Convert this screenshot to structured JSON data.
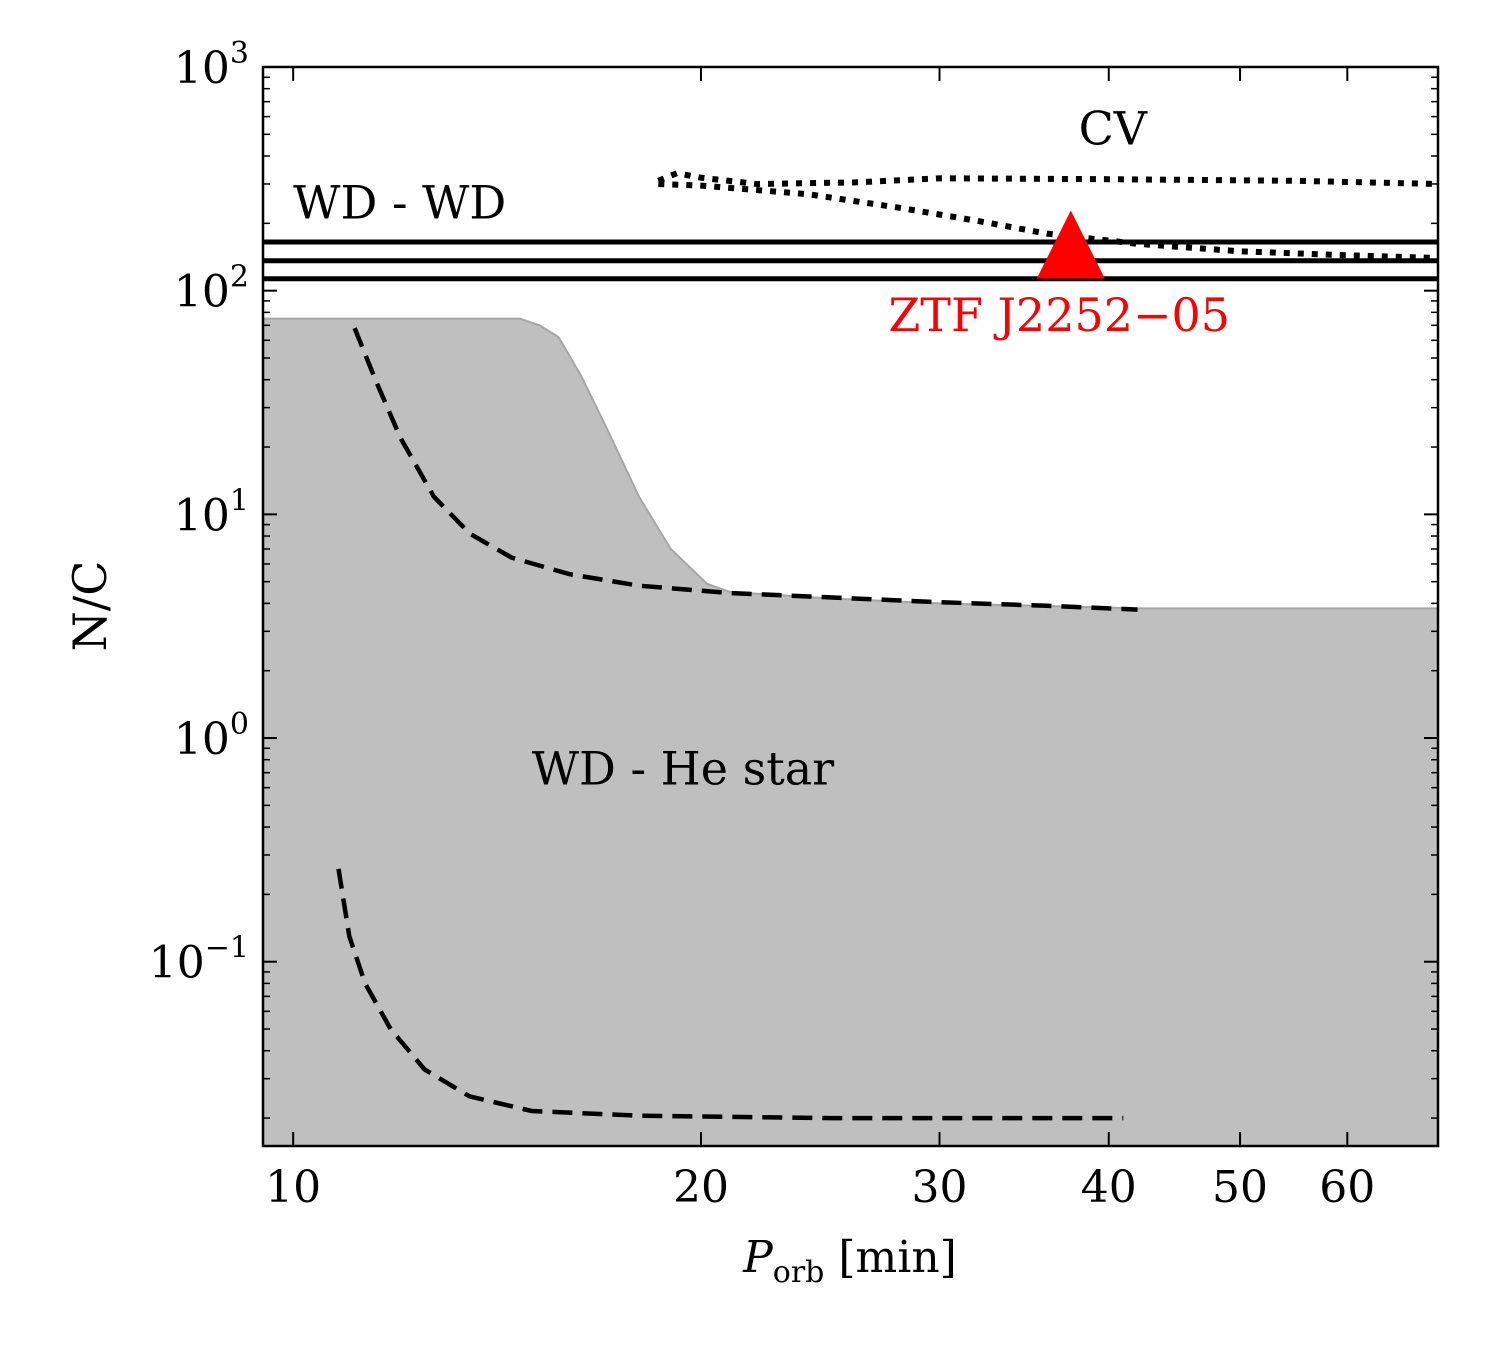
{
  "chart_data": {
    "type": "line",
    "title": "",
    "xlabel_main": "P",
    "xlabel_sub": "orb",
    "xlabel_unit": "[min]",
    "ylabel": "N/C",
    "xscale": "log",
    "yscale": "log",
    "xlim": [
      9.5,
      70
    ],
    "ylim": [
      0.015,
      1000
    ],
    "x_ticks": [
      {
        "value": 10,
        "label": "10"
      },
      {
        "value": 20,
        "label": "20"
      },
      {
        "value": 30,
        "label": "30"
      },
      {
        "value": 40,
        "label": "40"
      },
      {
        "value": 50,
        "label": "50"
      },
      {
        "value": 60,
        "label": "60"
      }
    ],
    "y_ticks": [
      {
        "value": 1000,
        "base": "10",
        "exp": "3"
      },
      {
        "value": 100,
        "base": "10",
        "exp": "2"
      },
      {
        "value": 10,
        "base": "10",
        "exp": "1"
      },
      {
        "value": 1,
        "base": "10",
        "exp": "0"
      },
      {
        "value": 0.1,
        "base": "10",
        "exp": "−1"
      }
    ],
    "regions": [
      {
        "name": "WD - He star",
        "color": "#bfbfbf",
        "edge_color": "#a6a6a6",
        "upper_boundary": [
          {
            "x": 9.5,
            "y": 75
          },
          {
            "x": 14.7,
            "y": 75
          },
          {
            "x": 15.2,
            "y": 70
          },
          {
            "x": 15.7,
            "y": 62
          },
          {
            "x": 16.3,
            "y": 42
          },
          {
            "x": 17.0,
            "y": 25
          },
          {
            "x": 18.0,
            "y": 12
          },
          {
            "x": 19.0,
            "y": 7
          },
          {
            "x": 20.2,
            "y": 4.9
          },
          {
            "x": 21.0,
            "y": 4.5
          },
          {
            "x": 25,
            "y": 4.2
          },
          {
            "x": 30,
            "y": 4.0
          },
          {
            "x": 42,
            "y": 3.8
          },
          {
            "x": 70,
            "y": 3.8
          }
        ]
      }
    ],
    "series": [
      {
        "name": "WD-WD track 1",
        "style": "solid",
        "points": [
          {
            "x": 9.5,
            "y": 165
          },
          {
            "x": 70,
            "y": 165
          }
        ]
      },
      {
        "name": "WD-WD track 2",
        "style": "solid",
        "points": [
          {
            "x": 9.5,
            "y": 136
          },
          {
            "x": 70,
            "y": 136
          }
        ]
      },
      {
        "name": "WD-WD track 3",
        "style": "solid",
        "points": [
          {
            "x": 9.5,
            "y": 113
          },
          {
            "x": 70,
            "y": 113
          }
        ]
      },
      {
        "name": "He star track (upper)",
        "style": "dashed",
        "points": [
          {
            "x": 11.1,
            "y": 68
          },
          {
            "x": 11.5,
            "y": 40
          },
          {
            "x": 12.0,
            "y": 22
          },
          {
            "x": 12.7,
            "y": 12
          },
          {
            "x": 13.5,
            "y": 8.2
          },
          {
            "x": 14.5,
            "y": 6.4
          },
          {
            "x": 16.0,
            "y": 5.4
          },
          {
            "x": 18.0,
            "y": 4.8
          },
          {
            "x": 21.0,
            "y": 4.45
          },
          {
            "x": 25.0,
            "y": 4.25
          },
          {
            "x": 30.0,
            "y": 4.05
          },
          {
            "x": 36.0,
            "y": 3.9
          },
          {
            "x": 42.0,
            "y": 3.75
          }
        ]
      },
      {
        "name": "He star track (lower)",
        "style": "dashed",
        "points": [
          {
            "x": 10.8,
            "y": 0.26
          },
          {
            "x": 11.0,
            "y": 0.13
          },
          {
            "x": 11.3,
            "y": 0.08
          },
          {
            "x": 11.8,
            "y": 0.05
          },
          {
            "x": 12.5,
            "y": 0.033
          },
          {
            "x": 13.5,
            "y": 0.025
          },
          {
            "x": 15.0,
            "y": 0.0215
          },
          {
            "x": 18.0,
            "y": 0.0205
          },
          {
            "x": 25.0,
            "y": 0.02
          },
          {
            "x": 35.0,
            "y": 0.02
          },
          {
            "x": 41.0,
            "y": 0.02
          }
        ]
      },
      {
        "name": "CV track (upper)",
        "style": "dotted",
        "points": [
          {
            "x": 18.6,
            "y": 310
          },
          {
            "x": 19.2,
            "y": 335
          },
          {
            "x": 20.0,
            "y": 320
          },
          {
            "x": 22.0,
            "y": 300
          },
          {
            "x": 26.0,
            "y": 305
          },
          {
            "x": 30.0,
            "y": 318
          },
          {
            "x": 40.0,
            "y": 315
          },
          {
            "x": 55.0,
            "y": 310
          },
          {
            "x": 70.0,
            "y": 300
          }
        ]
      },
      {
        "name": "CV track (lower)",
        "style": "dotted",
        "points": [
          {
            "x": 18.6,
            "y": 300
          },
          {
            "x": 20.0,
            "y": 295
          },
          {
            "x": 24.0,
            "y": 270
          },
          {
            "x": 28.0,
            "y": 235
          },
          {
            "x": 32.0,
            "y": 205
          },
          {
            "x": 36.0,
            "y": 180
          },
          {
            "x": 42.0,
            "y": 162
          },
          {
            "x": 50.0,
            "y": 150
          },
          {
            "x": 60.0,
            "y": 144
          },
          {
            "x": 70.0,
            "y": 140
          }
        ]
      }
    ],
    "markers": [
      {
        "name": "ZTF J2252−05",
        "x": 37.5,
        "y": 150,
        "shape": "triangle",
        "color": "#ff0000"
      }
    ],
    "annotations": [
      {
        "text": "WD - WD",
        "x": 10.0,
        "y": 210,
        "color": "#000000"
      },
      {
        "text": "CV",
        "x": 38.0,
        "y": 450,
        "color": "#000000"
      },
      {
        "text": "ZTF J2252−05",
        "x": 27.5,
        "y": 66,
        "color": "#ff0000"
      },
      {
        "text": "WD - He star",
        "x": 15.0,
        "y": 0.62,
        "color": "#000000"
      }
    ]
  }
}
